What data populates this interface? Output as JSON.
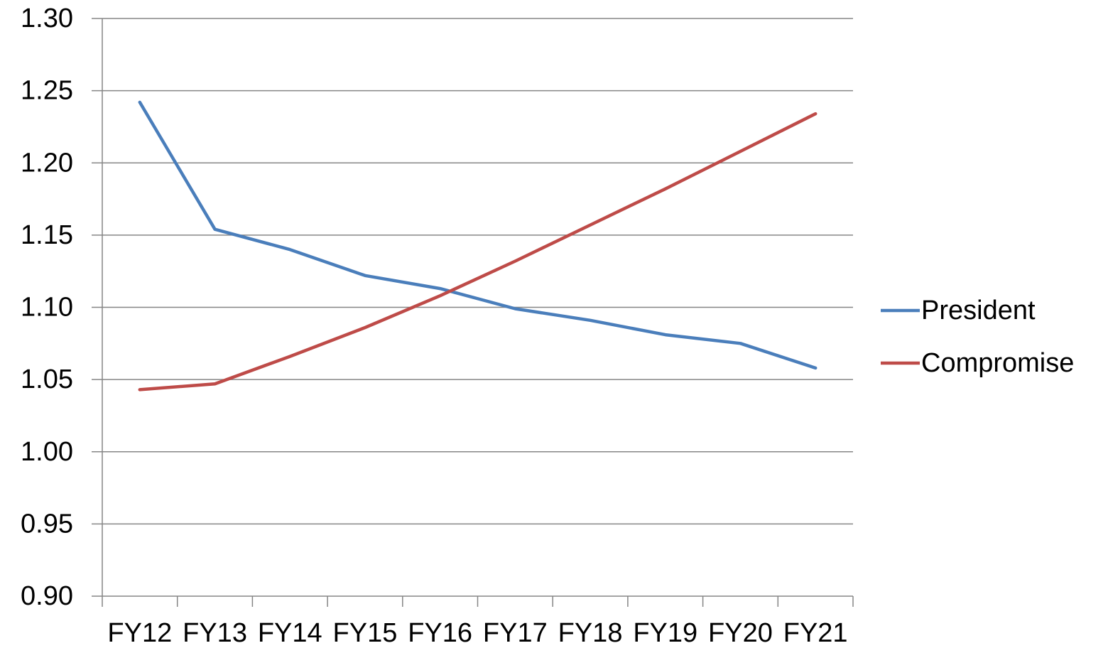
{
  "chart_data": {
    "type": "line",
    "title": "",
    "xlabel": "",
    "ylabel": "",
    "categories": [
      "FY12",
      "FY13",
      "FY14",
      "FY15",
      "FY16",
      "FY17",
      "FY18",
      "FY19",
      "FY20",
      "FY21"
    ],
    "ylim": [
      0.9,
      1.3
    ],
    "yticks": [
      "0.90",
      "0.95",
      "1.00",
      "1.05",
      "1.10",
      "1.15",
      "1.20",
      "1.25",
      "1.30"
    ],
    "grid": true,
    "legend_position": "right",
    "series": [
      {
        "name": "President",
        "color": "#4a7ebb",
        "values": [
          1.242,
          1.154,
          1.14,
          1.122,
          1.113,
          1.099,
          1.091,
          1.081,
          1.075,
          1.058
        ]
      },
      {
        "name": "Compromise",
        "color": "#be4b48",
        "values": [
          1.043,
          1.047,
          1.066,
          1.086,
          1.108,
          1.132,
          1.157,
          1.182,
          1.208,
          1.234
        ]
      }
    ]
  }
}
